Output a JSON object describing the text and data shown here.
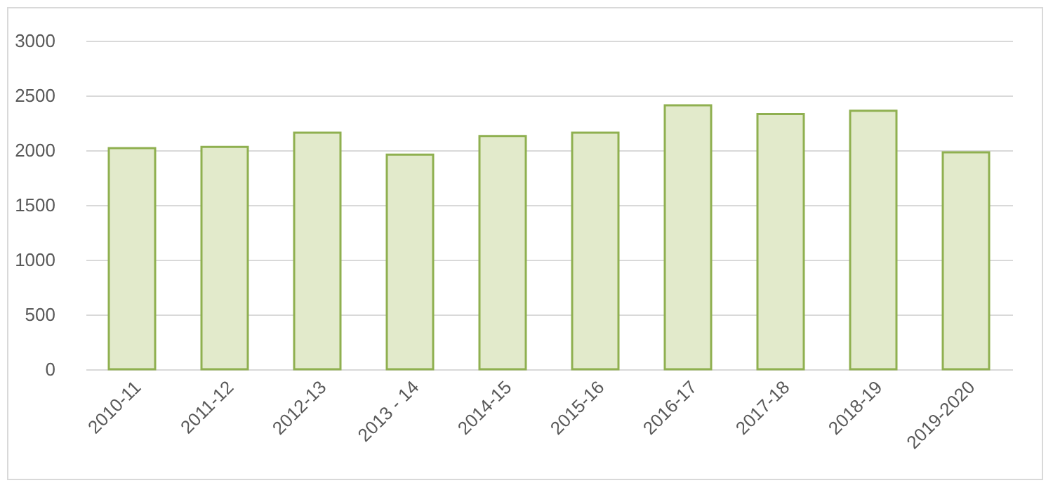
{
  "chart_data": {
    "type": "bar",
    "categories": [
      "2010-11",
      "2011-12",
      "2012-13",
      "2013 - 14",
      "2014-15",
      "2015-16",
      "2016-17",
      "2017-18",
      "2018-19",
      "2019-2020"
    ],
    "values": [
      2020,
      2030,
      2160,
      1960,
      2130,
      2160,
      2410,
      2330,
      2360,
      1980
    ],
    "color": "#e2eacb",
    "ylim": [
      0,
      3000
    ],
    "yticks": [
      0,
      500,
      1000,
      1500,
      2000,
      2500,
      3000
    ],
    "grid": "y"
  }
}
